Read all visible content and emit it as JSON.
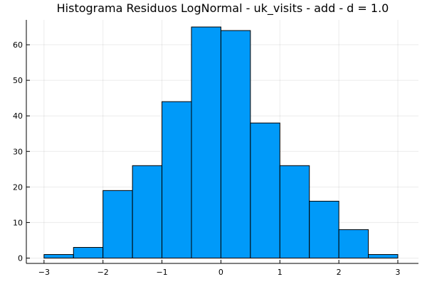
{
  "chart_data": {
    "type": "bar",
    "title": "Histograma Residuos LogNormal - uk_visits - add - d = 1.0",
    "xlabel": "",
    "ylabel": "",
    "bin_edges": [
      -3.0,
      -2.5,
      -2.0,
      -1.5,
      -1.0,
      -0.5,
      0.0,
      0.5,
      1.0,
      1.5,
      2.0,
      2.5,
      3.0
    ],
    "values": [
      1,
      3,
      19,
      26,
      44,
      65,
      64,
      38,
      26,
      16,
      8,
      1
    ],
    "xlim": [
      -3.3,
      3.35
    ],
    "ylim": [
      -1.5,
      67
    ],
    "xticks": [
      -3,
      -2,
      -1,
      0,
      1,
      2,
      3
    ],
    "yticks": [
      0,
      10,
      20,
      30,
      40,
      50,
      60
    ],
    "grid": true,
    "legend": "none",
    "bar_color": "#009AF9"
  }
}
